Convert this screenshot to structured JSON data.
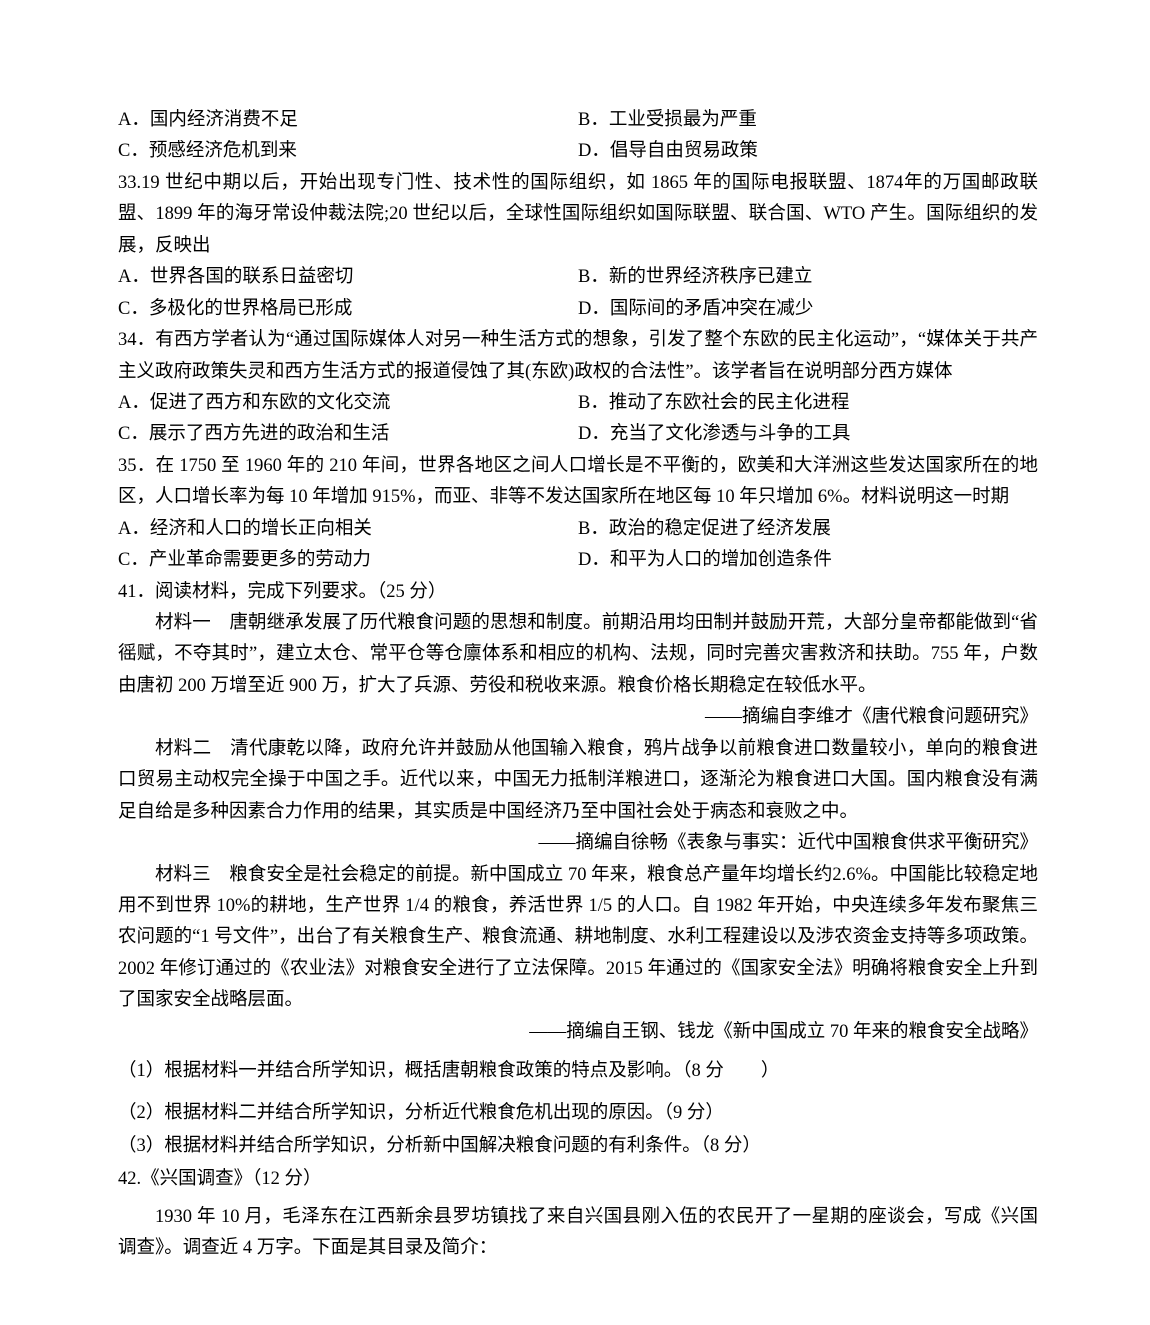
{
  "q32": {
    "A": "A．国内经济消费不足",
    "B": "B．工业受损最为严重",
    "C": "C．预感经济危机到来",
    "D": "D．倡导自由贸易政策"
  },
  "q33": {
    "stem": "33.19 世纪中期以后，开始出现专门性、技术性的国际组织，如 1865 年的国际电报联盟、1874年的万国邮政联盟、1899 年的海牙常设仲裁法院;20 世纪以后，全球性国际组织如国际联盟、联合国、WTO 产生。国际组织的发展，反映出",
    "A": "A．世界各国的联系日益密切",
    "B": "B．新的世界经济秩序已建立",
    "C": "C．多极化的世界格局已形成",
    "D": "D．国际间的矛盾冲突在减少"
  },
  "q34": {
    "stem": "34．有西方学者认为“通过国际媒体人对另一种生活方式的想象，引发了整个东欧的民主化运动”，“媒体关于共产主义政府政策失灵和西方生活方式的报道侵蚀了其(东欧)政权的合法性”。该学者旨在说明部分西方媒体",
    "A": "A．促进了西方和东欧的文化交流",
    "B": "B．推动了东欧社会的民主化进程",
    "C": "C．展示了西方先进的政治和生活",
    "D": "D．充当了文化渗透与斗争的工具"
  },
  "q35": {
    "stem": "35．在 1750 至 1960 年的 210 年间，世界各地区之间人口增长是不平衡的，欧美和大洋洲这些发达国家所在的地区，人口增长率为每 10 年增加 915%，而亚、非等不发达国家所在地区每 10 年只增加 6%。材料说明这一时期",
    "A": "A．经济和人口的增长正向相关",
    "B": "B．政治的稳定促进了经济发展",
    "C": "C．产业革命需要更多的劳动力",
    "D": "D．和平为人口的增加创造条件"
  },
  "q41": {
    "head": "41．阅读材料，完成下列要求。（25 分）",
    "m1": "材料一　唐朝继承发展了历代粮食问题的思想和制度。前期沿用均田制并鼓励开荒，大部分皇帝都能做到“省徭赋，不夺其时”，建立太仓、常平仓等仓廪体系和相应的机构、法规，同时完善灾害救济和扶助。755 年，户数由唐初 200 万增至近 900 万，扩大了兵源、劳役和税收来源。粮食价格长期稳定在较低水平。",
    "c1": "——摘编自李维才《唐代粮食问题研究》",
    "m2": "材料二　清代康乾以降，政府允许并鼓励从他国输入粮食，鸦片战争以前粮食进口数量较小，单向的粮食进口贸易主动权完全操于中国之手。近代以来，中国无力抵制洋粮进口，逐渐沦为粮食进口大国。国内粮食没有满足自给是多种因素合力作用的结果，其实质是中国经济乃至中国社会处于病态和衰败之中。",
    "c2": "——摘编自徐畅《表象与事实：近代中国粮食供求平衡研究》",
    "m3": "材料三　粮食安全是社会稳定的前提。新中国成立 70 年来，粮食总产量年均增长约2.6%。中国能比较稳定地用不到世界 10%的耕地，生产世界 1/4 的粮食，养活世界 1/5 的人口。自 1982 年开始，中央连续多年发布聚焦三农问题的“1 号文件”，出台了有关粮食生产、粮食流通、耕地制度、水利工程建设以及涉农资金支持等多项政策。2002 年修订通过的《农业法》对粮食安全进行了立法保障。2015 年通过的《国家安全法》明确将粮食安全上升到了国家安全战略层面。",
    "c3": "——摘编自王钢、钱龙《新中国成立 70 年来的粮食安全战略》",
    "s1": "（1）根据材料一并结合所学知识，概括唐朝粮食政策的特点及影响。（8 分　　）",
    "s2": "（2）根据材料二并结合所学知识，分析近代粮食危机出现的原因。（9 分）",
    "s3": "（3）根据材料并结合所学知识，分析新中国解决粮食问题的有利条件。（8 分）"
  },
  "q42": {
    "head": "42.《兴国调查》（12 分）",
    "p1": "1930 年 10 月，毛泽东在江西新余县罗坊镇找了来自兴国县刚入伍的农民开了一星期的座谈会，写成《兴国调查》。调查近 4 万字。下面是其目录及简介："
  }
}
